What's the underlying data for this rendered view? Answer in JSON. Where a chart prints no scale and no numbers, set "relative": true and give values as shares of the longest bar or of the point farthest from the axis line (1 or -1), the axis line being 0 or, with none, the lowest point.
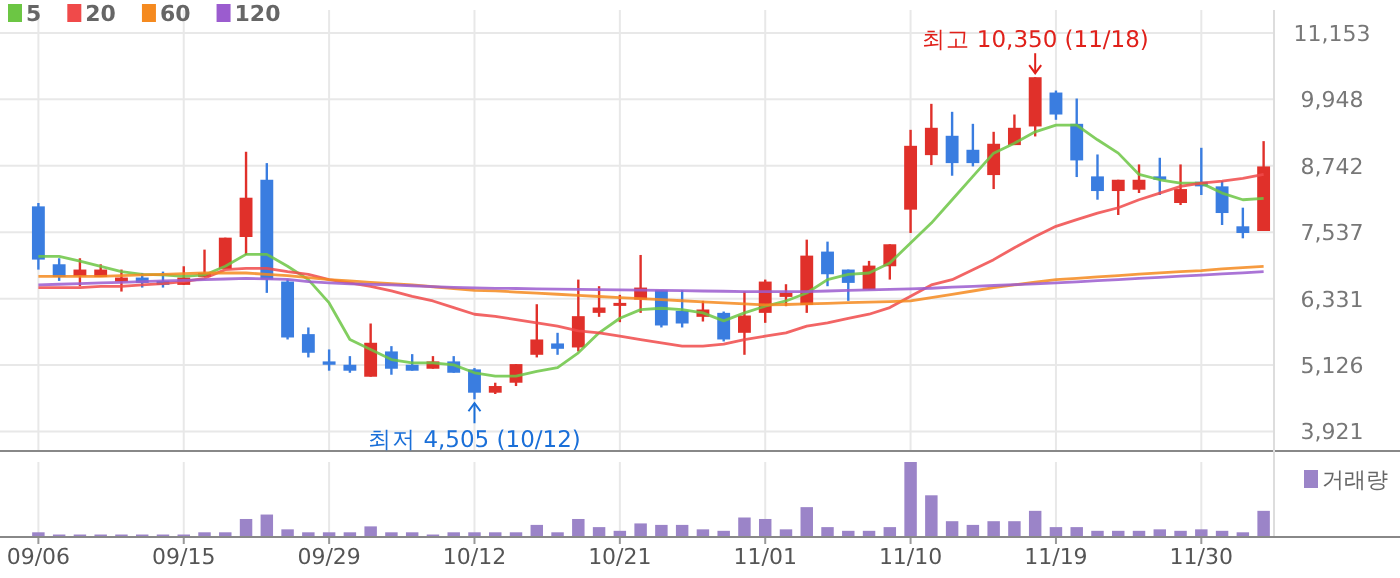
{
  "chart_data": [
    {
      "type": "candlestick",
      "legend": "top left",
      "grid": true,
      "tick_labels": "y",
      "categories": [
        "09/06",
        null,
        null,
        null,
        null,
        null,
        null,
        "09/15",
        null,
        null,
        null,
        null,
        null,
        null,
        "09/29",
        null,
        null,
        null,
        null,
        null,
        null,
        "10/12",
        null,
        null,
        null,
        null,
        null,
        null,
        "10/21",
        null,
        null,
        null,
        null,
        null,
        null,
        "11/01",
        null,
        null,
        null,
        null,
        null,
        null,
        "11/10",
        null,
        null,
        null,
        null,
        null,
        null,
        "11/19",
        null,
        null,
        null,
        null,
        null,
        null,
        "11/30",
        null,
        null,
        null
      ],
      "ylim": [
        3584,
        11570
      ],
      "yticks": [
        {
          "value": 3921,
          "label": "3,921"
        },
        {
          "value": 5126,
          "label": "5,126"
        },
        {
          "value": 6331,
          "label": "6,331"
        },
        {
          "value": 7537,
          "label": "7,537"
        },
        {
          "value": 8742,
          "label": "8,742"
        },
        {
          "value": 9948,
          "label": "9,948"
        },
        {
          "value": 11153,
          "label": "11,153"
        }
      ],
      "ohlc": [
        [
          8006,
          8067,
          6858,
          7040
        ],
        [
          6955,
          7064,
          6653,
          6726
        ],
        [
          6738,
          7064,
          6557,
          6859
        ],
        [
          6726,
          6955,
          6726,
          6859
        ],
        [
          6641,
          6859,
          6460,
          6714
        ],
        [
          6714,
          6798,
          6532,
          6617
        ],
        [
          6653,
          6822,
          6532,
          6581
        ],
        [
          6581,
          6919,
          6581,
          6714
        ],
        [
          6726,
          7221,
          6726,
          6798
        ],
        [
          6871,
          7438,
          6871,
          7438
        ],
        [
          7450,
          8997,
          7124,
          8163
        ],
        [
          8489,
          8791,
          6436,
          6677
        ],
        [
          6641,
          6677,
          5590,
          5626
        ],
        [
          5687,
          5808,
          5264,
          5349
        ],
        [
          5192,
          5409,
          5023,
          5131
        ],
        [
          5131,
          5288,
          4986,
          5023
        ],
        [
          4914,
          5880,
          4914,
          5530
        ],
        [
          5373,
          5469,
          4950,
          5059
        ],
        [
          5131,
          5324,
          5023,
          5023
        ],
        [
          5059,
          5288,
          5059,
          5192
        ],
        [
          5192,
          5288,
          4986,
          4986
        ],
        [
          5047,
          5071,
          4505,
          4624
        ],
        [
          4624,
          4805,
          4600,
          4745
        ],
        [
          4805,
          5143,
          4745,
          5143
        ],
        [
          5312,
          6230,
          5264,
          5590
        ],
        [
          5518,
          5711,
          5312,
          5421
        ],
        [
          5445,
          6677,
          5373,
          6013
        ],
        [
          6073,
          6557,
          6001,
          6170
        ],
        [
          6218,
          6400,
          5904,
          6254
        ],
        [
          6315,
          7124,
          6073,
          6532
        ],
        [
          6484,
          6484,
          5808,
          5844
        ],
        [
          6110,
          6484,
          5808,
          5880
        ],
        [
          6001,
          6291,
          5916,
          6134
        ],
        [
          6073,
          6097,
          5554,
          5590
        ],
        [
          5711,
          6460,
          5312,
          6025
        ],
        [
          6073,
          6677,
          5892,
          6641
        ],
        [
          6363,
          6593,
          6194,
          6436
        ],
        [
          6218,
          7402,
          6073,
          7112
        ],
        [
          7185,
          7366,
          6557,
          6774
        ],
        [
          6859,
          6859,
          6291,
          6617
        ],
        [
          6496,
          7016,
          6496,
          6931
        ],
        [
          6919,
          7318,
          6677,
          7318
        ],
        [
          7946,
          9395,
          7523,
          9105
        ],
        [
          8936,
          9867,
          8755,
          9432
        ],
        [
          9287,
          9722,
          8562,
          8791
        ],
        [
          9033,
          9504,
          8731,
          8791
        ],
        [
          8574,
          9359,
          8320,
          9142
        ],
        [
          9118,
          9673,
          9118,
          9432
        ],
        [
          9456,
          10350,
          9275,
          10350
        ],
        [
          10072,
          10108,
          9577,
          9673
        ],
        [
          9504,
          9963,
          8538,
          8840
        ],
        [
          8550,
          8948,
          8127,
          8284
        ],
        [
          8284,
          8489,
          7849,
          8489
        ],
        [
          8308,
          8767,
          8248,
          8489
        ],
        [
          8550,
          8888,
          8212,
          8489
        ],
        [
          8067,
          8767,
          8030,
          8320
        ],
        [
          8453,
          9069,
          8212,
          8369
        ],
        [
          8369,
          8465,
          7668,
          7885
        ],
        [
          7644,
          7982,
          7426,
          7523
        ],
        [
          7559,
          9190,
          7559,
          8731
        ]
      ],
      "series": [
        {
          "name": "5",
          "type": "line",
          "color": "#6cc644",
          "values": [
            7099,
            7099,
            7014,
            6918,
            6821,
            6773,
            6761,
            6737,
            6761,
            6918,
            7135,
            7135,
            6918,
            6676,
            6253,
            5589,
            5408,
            5226,
            5166,
            5166,
            5130,
            4985,
            4924,
            4924,
            5009,
            5081,
            5347,
            5710,
            5975,
            6132,
            6157,
            6132,
            6072,
            5927,
            6072,
            6193,
            6289,
            6434,
            6676,
            6773,
            6797,
            6978,
            7341,
            7703,
            8126,
            8549,
            8972,
            9153,
            9359,
            9480,
            9480,
            9214,
            8972,
            8585,
            8489,
            8428,
            8428,
            8247,
            8126,
            8150
          ]
        },
        {
          "name": "20",
          "type": "line",
          "color": "#f04a4a",
          "values": [
            6531,
            6531,
            6531,
            6555,
            6555,
            6580,
            6604,
            6640,
            6700,
            6857,
            6881,
            6881,
            6821,
            6773,
            6676,
            6616,
            6555,
            6471,
            6374,
            6289,
            6169,
            6048,
            6011,
            5951,
            5891,
            5831,
            5746,
            5710,
            5649,
            5589,
            5528,
            5468,
            5468,
            5504,
            5589,
            5649,
            5710,
            5831,
            5891,
            5975,
            6048,
            6169,
            6374,
            6580,
            6676,
            6857,
            7039,
            7256,
            7461,
            7643,
            7764,
            7884,
            7981,
            8126,
            8247,
            8368,
            8428,
            8464,
            8513,
            8585
          ]
        },
        {
          "name": "60",
          "type": "line",
          "color": "#f58a1f",
          "values": [
            6737,
            6737,
            6737,
            6737,
            6749,
            6761,
            6773,
            6785,
            6797,
            6797,
            6797,
            6773,
            6749,
            6712,
            6676,
            6652,
            6628,
            6604,
            6580,
            6547,
            6515,
            6483,
            6471,
            6451,
            6431,
            6411,
            6390,
            6370,
            6350,
            6331,
            6312,
            6293,
            6274,
            6255,
            6236,
            6217,
            6225,
            6236,
            6246,
            6257,
            6268,
            6278,
            6289,
            6350,
            6410,
            6470,
            6530,
            6580,
            6630,
            6676,
            6700,
            6725,
            6750,
            6775,
            6800,
            6820,
            6840,
            6870,
            6895,
            6918
          ]
        },
        {
          "name": "120",
          "type": "line",
          "color": "#9b5ccf",
          "values": [
            6580,
            6592,
            6604,
            6616,
            6628,
            6640,
            6652,
            6664,
            6676,
            6688,
            6700,
            6690,
            6680,
            6640,
            6616,
            6600,
            6590,
            6580,
            6565,
            6550,
            6535,
            6525,
            6519,
            6515,
            6510,
            6505,
            6500,
            6495,
            6490,
            6485,
            6480,
            6475,
            6470,
            6465,
            6460,
            6459,
            6459,
            6459,
            6470,
            6480,
            6490,
            6500,
            6510,
            6520,
            6540,
            6555,
            6570,
            6585,
            6600,
            6616,
            6636,
            6657,
            6677,
            6698,
            6718,
            6739,
            6759,
            6780,
            6800,
            6821
          ]
        }
      ],
      "annotations": [
        {
          "text": "최고 10,350 (11/18)",
          "y": 10350
        },
        {
          "text": "최저 4,505 (10/12)",
          "x": "10/12",
          "y": 4505
        }
      ]
    },
    {
      "type": "bar",
      "relative": true,
      "legend": "top right",
      "grid": "x",
      "tick_labels": "x",
      "categories": [
        "09/06",
        null,
        null,
        null,
        null,
        null,
        null,
        "09/15",
        null,
        null,
        null,
        null,
        null,
        null,
        "09/29",
        null,
        null,
        null,
        null,
        null,
        null,
        "10/12",
        null,
        null,
        null,
        null,
        null,
        null,
        "10/21",
        null,
        null,
        null,
        null,
        null,
        null,
        "11/01",
        null,
        null,
        null,
        null,
        null,
        null,
        "11/10",
        null,
        null,
        null,
        null,
        null,
        null,
        "11/19",
        null,
        null,
        null,
        null,
        null,
        null,
        "11/30",
        null,
        null,
        null
      ],
      "series": [
        {
          "name": "거래량",
          "color": "#9b84c8",
          "values": [
            0.05,
            0.02,
            0.02,
            0.02,
            0.02,
            0.02,
            0.02,
            0.02,
            0.05,
            0.05,
            0.23,
            0.29,
            0.09,
            0.05,
            0.05,
            0.05,
            0.13,
            0.05,
            0.05,
            0.02,
            0.05,
            0.05,
            0.05,
            0.05,
            0.15,
            0.05,
            0.23,
            0.12,
            0.07,
            0.17,
            0.15,
            0.15,
            0.09,
            0.07,
            0.25,
            0.23,
            0.09,
            0.39,
            0.12,
            0.07,
            0.07,
            0.12,
            1,
            0.55,
            0.2,
            0.15,
            0.2,
            0.2,
            0.34,
            0.12,
            0.12,
            0.07,
            0.07,
            0.07,
            0.09,
            0.07,
            0.09,
            0.07,
            0.05,
            0.34
          ]
        }
      ]
    }
  ]
}
